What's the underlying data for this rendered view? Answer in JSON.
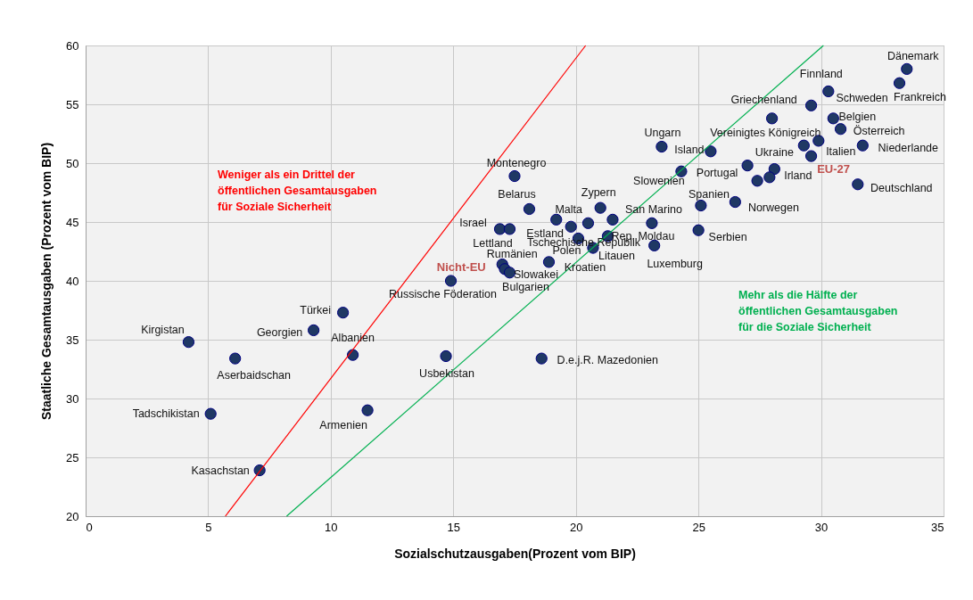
{
  "chart_data": {
    "type": "scatter",
    "xlabel": "Sozialschutzausgaben(Prozent vom BIP)",
    "ylabel": "Staatliche Gesamtausgaben  (Prozent vom BIP)",
    "xlim": [
      0,
      35
    ],
    "xticks": [
      0,
      5,
      10,
      15,
      20,
      25,
      30,
      35
    ],
    "ylim": [
      20,
      60
    ],
    "yticks": [
      20,
      25,
      30,
      35,
      40,
      45,
      50,
      55,
      60
    ],
    "grid": true,
    "legend": false,
    "series": [
      {
        "marker": "circle",
        "color": "#1f3864",
        "x": [
          4.2,
          6.1,
          5.1,
          7.1,
          9.3,
          10.5,
          10.9,
          11.5,
          14.7,
          14.9,
          18.6,
          17.5,
          18.1,
          16.9,
          17.3,
          17.0,
          17.1,
          17.3,
          18.9,
          19.2,
          19.8,
          20.1,
          20.5,
          21.0,
          21.5,
          21.3,
          20.7,
          23.1,
          23.2,
          25.0,
          25.1,
          26.5,
          24.3,
          25.5,
          23.5,
          27.0,
          28.1,
          27.9,
          27.4,
          28.0,
          29.6,
          30.3,
          29.3,
          29.9,
          29.6,
          30.5,
          30.8,
          31.7,
          31.5,
          33.2,
          33.5
        ],
        "values": [
          34.8,
          33.4,
          28.7,
          23.9,
          35.8,
          37.3,
          33.7,
          29.0,
          33.6,
          40.0,
          33.4,
          48.9,
          46.1,
          44.4,
          44.4,
          41.4,
          41.0,
          40.7,
          41.6,
          45.2,
          44.6,
          43.6,
          44.9,
          46.2,
          45.2,
          43.8,
          42.8,
          44.9,
          43.0,
          44.3,
          46.4,
          46.7,
          49.3,
          51.0,
          51.4,
          49.8,
          49.5,
          48.8,
          48.5,
          53.8,
          54.9,
          56.1,
          51.5,
          51.9,
          50.6,
          53.8,
          52.9,
          51.5,
          48.2,
          56.8,
          58.0
        ]
      },
      {
        "type": "line",
        "name": "Weniger als  ein Drittel der\nöffentlichen Gesamtausgaben\nfür Soziale Sicherheit",
        "color": "#ff0000",
        "x": [
          5.7,
          20.4
        ],
        "values": [
          20,
          60
        ]
      },
      {
        "type": "line",
        "name": "Mehr als die Hälfte der\nöffentlichen Gesamtausgaben\nfür die Soziale Sicherheit",
        "color": "#00b050",
        "x": [
          8.2,
          30.1
        ],
        "values": [
          20,
          60
        ]
      }
    ],
    "annotations": [
      {
        "text": "Kirgistan",
        "x": 4.2,
        "y": 34.8
      },
      {
        "text": "Aserbaidschan",
        "x": 6.1,
        "y": 33.4
      },
      {
        "text": "Tadschikistan",
        "x": 5.1,
        "y": 28.7
      },
      {
        "text": "Kasachstan",
        "x": 7.1,
        "y": 23.9
      },
      {
        "text": "Georgien",
        "x": 9.3,
        "y": 35.8
      },
      {
        "text": "Türkei",
        "x": 10.5,
        "y": 37.3
      },
      {
        "text": "Albanien",
        "x": 10.9,
        "y": 33.7
      },
      {
        "text": "Armenien",
        "x": 11.5,
        "y": 29.0
      },
      {
        "text": "Usbekistan",
        "x": 14.7,
        "y": 33.6
      },
      {
        "text": "Russische Föderation",
        "x": 14.9,
        "y": 40.0
      },
      {
        "text": "D.e.j.R. Mazedonien",
        "x": 18.6,
        "y": 33.4
      },
      {
        "text": "Montenegro",
        "x": 17.5,
        "y": 48.9
      },
      {
        "text": "Belarus",
        "x": 18.1,
        "y": 46.1
      },
      {
        "text": "Israel",
        "x": 16.9,
        "y": 44.4
      },
      {
        "text": "Lettland",
        "x": 17.3,
        "y": 44.4
      },
      {
        "text": "Rumänien",
        "x": 17.0,
        "y": 41.4
      },
      {
        "text": "Nicht-EU",
        "x": 17.0,
        "y": 41.4
      },
      {
        "text": "Slowakei",
        "x": 17.1,
        "y": 41.0
      },
      {
        "text": "Bulgarien",
        "x": 17.3,
        "y": 40.7
      },
      {
        "text": "Polen",
        "x": 18.9,
        "y": 41.6
      },
      {
        "text": "Malta",
        "x": 19.2,
        "y": 45.2
      },
      {
        "text": "Estland",
        "x": 19.8,
        "y": 44.6
      },
      {
        "text": "Tschechische Republik",
        "x": 20.1,
        "y": 43.6
      },
      {
        "text": "Zypern",
        "x": 21.0,
        "y": 46.2
      },
      {
        "text": "Rep. Moldau",
        "x": 21.5,
        "y": 45.2
      },
      {
        "text": "Litauen",
        "x": 21.3,
        "y": 43.8
      },
      {
        "text": "Kroatien",
        "x": 20.7,
        "y": 42.8
      },
      {
        "text": "San Marino",
        "x": 23.1,
        "y": 44.9
      },
      {
        "text": "Luxemburg",
        "x": 23.2,
        "y": 43.0
      },
      {
        "text": "Serbien",
        "x": 25.0,
        "y": 44.3
      },
      {
        "text": "Spanien",
        "x": 25.1,
        "y": 46.4
      },
      {
        "text": "Norwegen",
        "x": 26.5,
        "y": 46.7
      },
      {
        "text": "Slowenien",
        "x": 24.3,
        "y": 49.3
      },
      {
        "text": "Island",
        "x": 25.5,
        "y": 51.0
      },
      {
        "text": "Ungarn",
        "x": 23.5,
        "y": 51.4
      },
      {
        "text": "Portugal",
        "x": 27.0,
        "y": 49.8
      },
      {
        "text": "Ukraine",
        "x": 28.1,
        "y": 49.5
      },
      {
        "text": "Irland",
        "x": 27.9,
        "y": 48.8
      },
      {
        "text": "Griechenland",
        "x": 28.0,
        "y": 53.8
      },
      {
        "text": "Schweden",
        "x": 29.6,
        "y": 54.9
      },
      {
        "text": "Finnland",
        "x": 30.3,
        "y": 56.1
      },
      {
        "text": "Vereinigtes Königreich",
        "x": 29.3,
        "y": 51.5
      },
      {
        "text": "Italien",
        "x": 29.9,
        "y": 51.9
      },
      {
        "text": "EU-27",
        "x": 29.6,
        "y": 50.6
      },
      {
        "text": "Belgien",
        "x": 30.5,
        "y": 53.8
      },
      {
        "text": "Österreich",
        "x": 30.8,
        "y": 52.9
      },
      {
        "text": "Niederlande",
        "x": 31.7,
        "y": 51.5
      },
      {
        "text": "Deutschland",
        "x": 31.5,
        "y": 48.2
      },
      {
        "text": "Frankreich",
        "x": 33.2,
        "y": 56.8
      },
      {
        "text": "Dänemark",
        "x": 33.5,
        "y": 58.0
      }
    ]
  }
}
